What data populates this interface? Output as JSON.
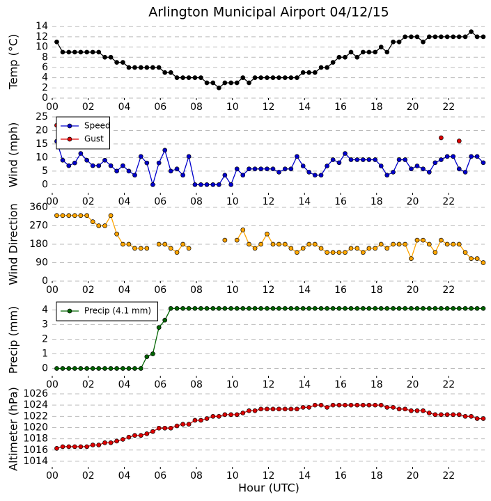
{
  "chart_data": [
    {
      "type": "line",
      "title": "Arlington Municipal Airport 04/12/15",
      "ylabel": "Temp (°C)",
      "x": [
        0.25,
        0.58,
        0.92,
        1.25,
        1.58,
        1.92,
        2.25,
        2.58,
        2.92,
        3.25,
        3.58,
        3.92,
        4.25,
        4.58,
        4.92,
        5.25,
        5.58,
        5.92,
        6.25,
        6.58,
        6.92,
        7.25,
        7.58,
        7.92,
        8.25,
        8.58,
        8.92,
        9.25,
        9.58,
        9.92,
        10.25,
        10.58,
        10.92,
        11.25,
        11.58,
        11.92,
        12.25,
        12.58,
        12.92,
        13.25,
        13.58,
        13.92,
        14.25,
        14.58,
        14.92,
        15.25,
        15.58,
        15.92,
        16.25,
        16.58,
        16.92,
        17.25,
        17.58,
        17.92,
        18.25,
        18.58,
        18.92,
        19.25,
        19.58,
        19.92,
        20.25,
        20.58,
        20.92,
        21.25,
        21.58,
        21.92,
        22.25,
        22.58,
        22.92,
        23.25,
        23.58,
        23.92
      ],
      "series": [
        {
          "color": "#000000",
          "values": [
            11,
            9,
            9,
            9,
            9,
            9,
            9,
            9,
            8,
            8,
            7,
            7,
            6,
            6,
            6,
            6,
            6,
            6,
            5,
            5,
            4,
            4,
            4,
            4,
            4,
            3,
            3,
            2,
            3,
            3,
            3,
            4,
            3,
            4,
            4,
            4,
            4,
            4,
            4,
            4,
            4,
            5,
            5,
            5,
            6,
            6,
            7,
            8,
            8,
            9,
            8,
            9,
            9,
            9,
            10,
            9,
            11,
            11,
            12,
            12,
            12,
            11,
            12,
            12,
            12,
            12,
            12,
            12,
            12,
            13,
            12,
            12
          ]
        }
      ],
      "xlim": [
        0,
        24
      ],
      "xticks": [
        {
          "value": 0,
          "label": "00"
        },
        {
          "value": 2,
          "label": "02"
        },
        {
          "value": 4,
          "label": "04"
        },
        {
          "value": 6,
          "label": "06"
        },
        {
          "value": 8,
          "label": "08"
        },
        {
          "value": 10,
          "label": "10"
        },
        {
          "value": 12,
          "label": "12"
        },
        {
          "value": 14,
          "label": "14"
        },
        {
          "value": 16,
          "label": "16"
        },
        {
          "value": 18,
          "label": "18"
        },
        {
          "value": 20,
          "label": "20"
        },
        {
          "value": 22,
          "label": "22"
        }
      ],
      "ylim": [
        0,
        14.3
      ],
      "yticks": [
        0,
        2,
        4,
        6,
        8,
        10,
        12,
        14
      ],
      "grid": true
    },
    {
      "type": "line",
      "ylabel": "Wind (mph)",
      "legend": "upper left",
      "x": [
        0.25,
        0.58,
        0.92,
        1.25,
        1.58,
        1.92,
        2.25,
        2.58,
        2.92,
        3.25,
        3.58,
        3.92,
        4.25,
        4.58,
        4.92,
        5.25,
        5.58,
        5.92,
        6.25,
        6.58,
        6.92,
        7.25,
        7.58,
        7.92,
        8.25,
        8.58,
        8.92,
        9.25,
        9.58,
        9.92,
        10.25,
        10.58,
        10.92,
        11.25,
        11.58,
        11.92,
        12.25,
        12.58,
        12.92,
        13.25,
        13.58,
        13.92,
        14.25,
        14.58,
        14.92,
        15.25,
        15.58,
        15.92,
        16.25,
        16.58,
        16.92,
        17.25,
        17.58,
        17.92,
        18.25,
        18.58,
        18.92,
        19.25,
        19.58,
        19.92,
        20.25,
        20.58,
        20.92,
        21.25,
        21.58,
        21.92,
        22.25,
        22.58,
        22.92,
        23.25,
        23.58,
        23.92
      ],
      "series": [
        {
          "name": "Speed",
          "color": "#0000cc",
          "values": [
            16,
            9,
            7,
            8,
            11.5,
            9,
            7,
            7,
            9,
            7,
            5,
            7,
            5,
            3.5,
            10.4,
            8,
            0,
            8,
            12.7,
            5,
            5.8,
            3.5,
            10.4,
            0,
            0,
            0,
            0,
            0,
            3.5,
            0,
            5.8,
            3.5,
            5.8,
            5.8,
            5.8,
            5.8,
            5.8,
            4.6,
            5.8,
            5.8,
            10.4,
            6.9,
            4.6,
            3.5,
            3.5,
            6.9,
            9.2,
            8.1,
            11.5,
            9.2,
            9.2,
            9.2,
            9.2,
            9.2,
            6.9,
            3.5,
            4.6,
            9.2,
            9.2,
            5.8,
            6.9,
            5.8,
            4.6,
            8.1,
            9.2,
            10.4,
            10.4,
            5.8,
            4.6,
            10.4,
            10.4,
            8.1
          ]
        },
        {
          "name": "Gust",
          "color": "#dd0000",
          "values": [
            21.9,
            null,
            null,
            null,
            null,
            null,
            null,
            null,
            null,
            null,
            null,
            null,
            null,
            null,
            null,
            null,
            null,
            null,
            null,
            null,
            null,
            null,
            null,
            null,
            null,
            null,
            null,
            null,
            null,
            null,
            null,
            null,
            null,
            null,
            null,
            null,
            null,
            null,
            null,
            null,
            null,
            null,
            null,
            null,
            null,
            null,
            null,
            null,
            null,
            null,
            null,
            null,
            null,
            null,
            null,
            null,
            null,
            null,
            null,
            null,
            null,
            null,
            null,
            null,
            17.3,
            null,
            null,
            16.1,
            null,
            null,
            null,
            null
          ]
        }
      ],
      "xlim": [
        0,
        24
      ],
      "xticks": [
        {
          "value": 0,
          "label": "00"
        },
        {
          "value": 2,
          "label": "02"
        },
        {
          "value": 4,
          "label": "04"
        },
        {
          "value": 6,
          "label": "06"
        },
        {
          "value": 8,
          "label": "08"
        },
        {
          "value": 10,
          "label": "10"
        },
        {
          "value": 12,
          "label": "12"
        },
        {
          "value": 14,
          "label": "14"
        },
        {
          "value": 16,
          "label": "16"
        },
        {
          "value": 18,
          "label": "18"
        },
        {
          "value": 20,
          "label": "20"
        },
        {
          "value": 22,
          "label": "22"
        }
      ],
      "ylim": [
        -3,
        25
      ],
      "yticks": [
        0,
        5,
        10,
        15,
        20,
        25
      ],
      "grid": true
    },
    {
      "type": "line",
      "ylabel": "Wind Direction",
      "x": [
        0.25,
        0.58,
        0.92,
        1.25,
        1.58,
        1.92,
        2.25,
        2.58,
        2.92,
        3.25,
        3.58,
        3.92,
        4.25,
        4.58,
        4.92,
        5.25,
        5.58,
        5.92,
        6.25,
        6.58,
        6.92,
        7.25,
        7.58,
        7.92,
        8.25,
        8.58,
        8.92,
        9.25,
        9.58,
        9.92,
        10.25,
        10.58,
        10.92,
        11.25,
        11.58,
        11.92,
        12.25,
        12.58,
        12.92,
        13.25,
        13.58,
        13.92,
        14.25,
        14.58,
        14.92,
        15.25,
        15.58,
        15.92,
        16.25,
        16.58,
        16.92,
        17.25,
        17.58,
        17.92,
        18.25,
        18.58,
        18.92,
        19.25,
        19.58,
        19.92,
        20.25,
        20.58,
        20.92,
        21.25,
        21.58,
        21.92,
        22.25,
        22.58,
        22.92,
        23.25,
        23.58,
        23.92
      ],
      "series": [
        {
          "color": "#ffa500",
          "values": [
            320,
            320,
            320,
            320,
            320,
            320,
            290,
            270,
            270,
            320,
            230,
            180,
            180,
            160,
            160,
            160,
            null,
            180,
            180,
            160,
            140,
            180,
            160,
            null,
            null,
            null,
            null,
            null,
            200,
            null,
            200,
            250,
            180,
            160,
            180,
            230,
            180,
            180,
            180,
            160,
            140,
            160,
            180,
            180,
            160,
            140,
            140,
            140,
            140,
            160,
            160,
            140,
            160,
            160,
            180,
            160,
            180,
            180,
            180,
            110,
            200,
            200,
            180,
            140,
            200,
            180,
            180,
            180,
            140,
            110,
            110,
            90
          ]
        }
      ],
      "xlim": [
        0,
        24
      ],
      "xticks": [
        {
          "value": 0,
          "label": "00"
        },
        {
          "value": 2,
          "label": "02"
        },
        {
          "value": 4,
          "label": "04"
        },
        {
          "value": 6,
          "label": "06"
        },
        {
          "value": 8,
          "label": "08"
        },
        {
          "value": 10,
          "label": "10"
        },
        {
          "value": 12,
          "label": "12"
        },
        {
          "value": 14,
          "label": "14"
        },
        {
          "value": 16,
          "label": "16"
        },
        {
          "value": 18,
          "label": "18"
        },
        {
          "value": 20,
          "label": "20"
        },
        {
          "value": 22,
          "label": "22"
        }
      ],
      "ylim": [
        0,
        360
      ],
      "yticks": [
        0,
        90,
        180,
        270,
        360
      ],
      "grid": true
    },
    {
      "type": "line",
      "ylabel": "Precip (mm)",
      "legend": "upper left",
      "x": [
        0.25,
        0.58,
        0.92,
        1.25,
        1.58,
        1.92,
        2.25,
        2.58,
        2.92,
        3.25,
        3.58,
        3.92,
        4.25,
        4.58,
        4.92,
        5.25,
        5.58,
        5.92,
        6.25,
        6.58,
        6.92,
        7.25,
        7.58,
        7.92,
        8.25,
        8.58,
        8.92,
        9.25,
        9.58,
        9.92,
        10.25,
        10.58,
        10.92,
        11.25,
        11.58,
        11.92,
        12.25,
        12.58,
        12.92,
        13.25,
        13.58,
        13.92,
        14.25,
        14.58,
        14.92,
        15.25,
        15.58,
        15.92,
        16.25,
        16.58,
        16.92,
        17.25,
        17.58,
        17.92,
        18.25,
        18.58,
        18.92,
        19.25,
        19.58,
        19.92,
        20.25,
        20.58,
        20.92,
        21.25,
        21.58,
        21.92,
        22.25,
        22.58,
        22.92,
        23.25,
        23.58,
        23.92
      ],
      "series": [
        {
          "name": "Precip (4.1 mm)",
          "color": "#006400",
          "values": [
            0,
            0,
            0,
            0,
            0,
            0,
            0,
            0,
            0,
            0,
            0,
            0,
            0,
            0,
            0,
            0.8,
            1.0,
            2.8,
            3.3,
            4.1,
            4.1,
            4.1,
            4.1,
            4.1,
            4.1,
            4.1,
            4.1,
            4.1,
            4.1,
            4.1,
            4.1,
            4.1,
            4.1,
            4.1,
            4.1,
            4.1,
            4.1,
            4.1,
            4.1,
            4.1,
            4.1,
            4.1,
            4.1,
            4.1,
            4.1,
            4.1,
            4.1,
            4.1,
            4.1,
            4.1,
            4.1,
            4.1,
            4.1,
            4.1,
            4.1,
            4.1,
            4.1,
            4.1,
            4.1,
            4.1,
            4.1,
            4.1,
            4.1,
            4.1,
            4.1,
            4.1,
            4.1,
            4.1,
            4.1,
            4.1,
            4.1,
            4.1
          ]
        }
      ],
      "xlim": [
        0,
        24
      ],
      "xticks": [
        {
          "value": 0,
          "label": "00"
        },
        {
          "value": 2,
          "label": "02"
        },
        {
          "value": 4,
          "label": "04"
        },
        {
          "value": 6,
          "label": "06"
        },
        {
          "value": 8,
          "label": "08"
        },
        {
          "value": 10,
          "label": "10"
        },
        {
          "value": 12,
          "label": "12"
        },
        {
          "value": 14,
          "label": "14"
        },
        {
          "value": 16,
          "label": "16"
        },
        {
          "value": 18,
          "label": "18"
        },
        {
          "value": 20,
          "label": "20"
        },
        {
          "value": 22,
          "label": "22"
        }
      ],
      "ylim": [
        -0.5,
        4.4
      ],
      "yticks": [
        0,
        1,
        2,
        3,
        4
      ],
      "grid": true
    },
    {
      "type": "line",
      "ylabel": "Altimeter (hPa)",
      "xlabel": "Hour (UTC)",
      "x": [
        0.25,
        0.58,
        0.92,
        1.25,
        1.58,
        1.92,
        2.25,
        2.58,
        2.92,
        3.25,
        3.58,
        3.92,
        4.25,
        4.58,
        4.92,
        5.25,
        5.58,
        5.92,
        6.25,
        6.58,
        6.92,
        7.25,
        7.58,
        7.92,
        8.25,
        8.58,
        8.92,
        9.25,
        9.58,
        9.92,
        10.25,
        10.58,
        10.92,
        11.25,
        11.58,
        11.92,
        12.25,
        12.58,
        12.92,
        13.25,
        13.58,
        13.92,
        14.25,
        14.58,
        14.92,
        15.25,
        15.58,
        15.92,
        16.25,
        16.58,
        16.92,
        17.25,
        17.58,
        17.92,
        18.25,
        18.58,
        18.92,
        19.25,
        19.58,
        19.92,
        20.25,
        20.58,
        20.92,
        21.25,
        21.58,
        21.92,
        22.25,
        22.58,
        22.92,
        23.25,
        23.58,
        23.92
      ],
      "series": [
        {
          "color": "#dd0000",
          "values": [
            1016.3,
            1016.6,
            1016.6,
            1016.6,
            1016.6,
            1016.6,
            1016.9,
            1016.9,
            1017.3,
            1017.3,
            1017.6,
            1017.9,
            1018.3,
            1018.6,
            1018.6,
            1018.9,
            1019.3,
            1019.9,
            1019.9,
            1019.9,
            1020.3,
            1020.6,
            1020.6,
            1021.3,
            1021.3,
            1021.6,
            1022.0,
            1022.0,
            1022.3,
            1022.3,
            1022.3,
            1022.6,
            1023.0,
            1023.0,
            1023.3,
            1023.3,
            1023.3,
            1023.3,
            1023.3,
            1023.3,
            1023.3,
            1023.6,
            1023.6,
            1024.0,
            1024.0,
            1023.6,
            1024.0,
            1024.0,
            1024.0,
            1024.0,
            1024.0,
            1024.0,
            1024.0,
            1024.0,
            1024.0,
            1023.6,
            1023.6,
            1023.3,
            1023.3,
            1023.0,
            1023.0,
            1023.0,
            1022.6,
            1022.3,
            1022.3,
            1022.3,
            1022.3,
            1022.3,
            1022.0,
            1022.0,
            1021.6,
            1021.6
          ]
        }
      ],
      "xlim": [
        0,
        24
      ],
      "xticks": [
        {
          "value": 0,
          "label": "00"
        },
        {
          "value": 2,
          "label": "02"
        },
        {
          "value": 4,
          "label": "04"
        },
        {
          "value": 6,
          "label": "06"
        },
        {
          "value": 8,
          "label": "08"
        },
        {
          "value": 10,
          "label": "10"
        },
        {
          "value": 12,
          "label": "12"
        },
        {
          "value": 14,
          "label": "14"
        },
        {
          "value": 16,
          "label": "16"
        },
        {
          "value": 18,
          "label": "18"
        },
        {
          "value": 20,
          "label": "20"
        },
        {
          "value": 22,
          "label": "22"
        }
      ],
      "ylim": [
        1013,
        1026.5
      ],
      "yticks": [
        1014,
        1016,
        1018,
        1020,
        1022,
        1024,
        1026
      ],
      "grid": true
    }
  ]
}
